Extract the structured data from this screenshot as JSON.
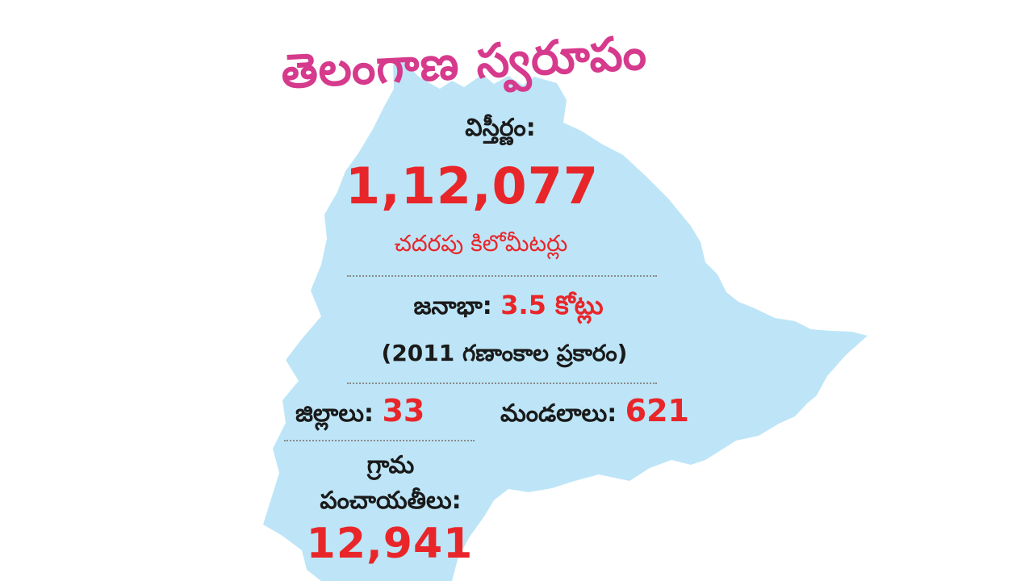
{
  "title": "తెలంగాణ స్వరూపం",
  "area": {
    "label": "విస్తీర్ణం:",
    "value": "1,12,077",
    "unit": "చదరపు కిలోమీటర్లు"
  },
  "population": {
    "label": "జనాభా:",
    "value": "3.5 కోట్లు",
    "note": "(2011 గణాంకాల ప్రకారం)"
  },
  "districts": {
    "label": "జిల్లాలు:",
    "value": "33"
  },
  "mandals": {
    "label": "మండలాలు:",
    "value": "621"
  },
  "gram_panchayats": {
    "label_line1": "గ్రామ",
    "label_line2": "పంచాయతీలు:",
    "value": "12,941"
  },
  "colors": {
    "map_fill": "#bde5f7",
    "title": "#d63a8c",
    "value_red": "#e8262a",
    "text_dark": "#1a1a1a"
  }
}
